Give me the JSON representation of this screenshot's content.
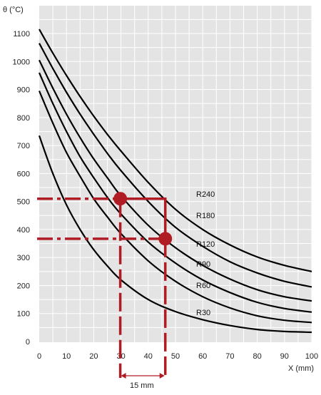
{
  "chart_data": {
    "type": "line",
    "ylabel": "θ (°C)",
    "xlabel": "X (mm)",
    "xlim": [
      0,
      100
    ],
    "ylim": [
      0,
      1200
    ],
    "x_ticks": [
      0,
      10,
      20,
      30,
      40,
      50,
      60,
      70,
      80,
      90,
      100
    ],
    "y_ticks": [
      0,
      100,
      200,
      300,
      400,
      500,
      600,
      700,
      800,
      900,
      1000,
      1100
    ],
    "grid": true,
    "background": "#e4e4e4",
    "grid_color": "#ffffff",
    "curve_color": "#000000",
    "series": [
      {
        "name": "R30",
        "x": [
          0,
          5,
          10,
          15,
          20,
          25,
          30,
          40,
          50,
          60,
          70,
          80,
          90,
          100
        ],
        "y": [
          735,
          600,
          488,
          400,
          328,
          270,
          220,
          150,
          107,
          78,
          57,
          43,
          36,
          33
        ]
      },
      {
        "name": "R60",
        "x": [
          0,
          5,
          10,
          15,
          20,
          25,
          30,
          40,
          50,
          60,
          70,
          80,
          90,
          100
        ],
        "y": [
          895,
          780,
          675,
          590,
          510,
          445,
          385,
          288,
          215,
          160,
          120,
          92,
          76,
          68
        ]
      },
      {
        "name": "R90",
        "x": [
          0,
          5,
          10,
          15,
          20,
          25,
          30,
          40,
          50,
          60,
          70,
          80,
          90,
          100
        ],
        "y": [
          960,
          850,
          750,
          660,
          585,
          515,
          455,
          355,
          280,
          220,
          175,
          140,
          118,
          105
        ]
      },
      {
        "name": "R120",
        "x": [
          0,
          5,
          10,
          15,
          20,
          25,
          30,
          40,
          50,
          60,
          70,
          80,
          90,
          100
        ],
        "y": [
          1005,
          905,
          812,
          728,
          652,
          585,
          520,
          415,
          335,
          272,
          223,
          185,
          160,
          145
        ]
      },
      {
        "name": "R180",
        "x": [
          0,
          5,
          10,
          15,
          20,
          25,
          30,
          40,
          50,
          60,
          70,
          80,
          90,
          100
        ],
        "y": [
          1065,
          975,
          890,
          812,
          740,
          672,
          610,
          500,
          408,
          340,
          285,
          245,
          215,
          195
        ]
      },
      {
        "name": "R240",
        "x": [
          0,
          5,
          10,
          15,
          20,
          25,
          30,
          40,
          50,
          60,
          70,
          80,
          90,
          100
        ],
        "y": [
          1115,
          1030,
          950,
          875,
          805,
          740,
          680,
          568,
          472,
          400,
          345,
          302,
          272,
          250
        ]
      }
    ],
    "annotations": {
      "color": "#b01c24",
      "points": [
        {
          "x": 30,
          "y": 510
        },
        {
          "x": 46,
          "y": 367
        }
      ],
      "interval_label": "15 mm",
      "interval": [
        30,
        45
      ]
    }
  }
}
